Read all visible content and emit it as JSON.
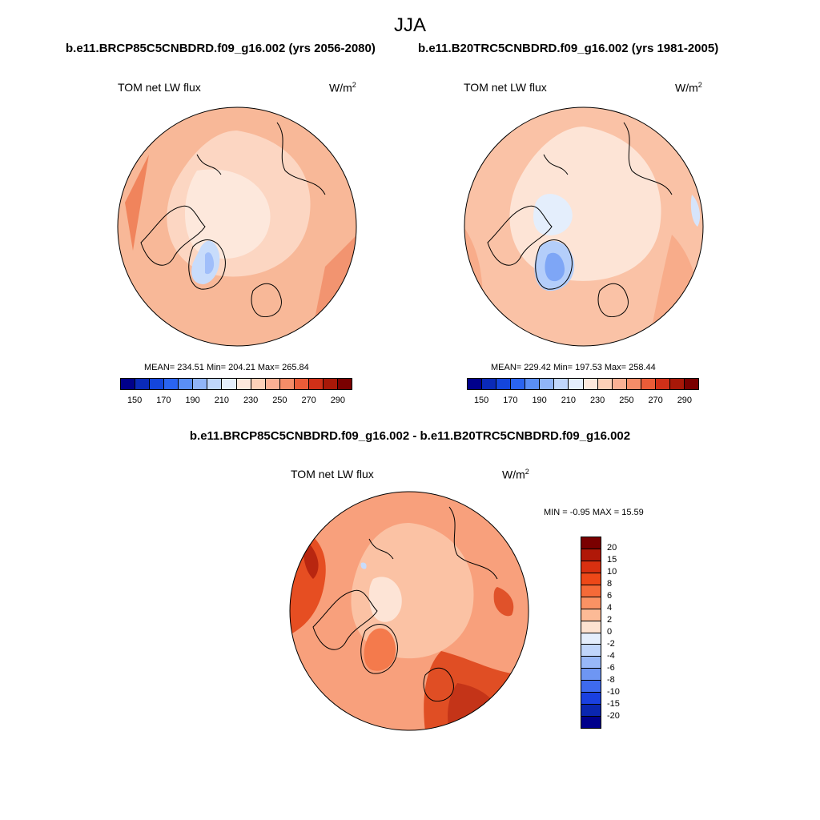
{
  "chart_data": {
    "type": "heatmap",
    "title": "JJA",
    "panels": [
      {
        "id": "scenario",
        "run_title": "b.e11.BRCP85C5CNBDRD.f09_g16.002 (yrs 2056-2080)",
        "variable": "TOM net LW flux",
        "units_base": "W/m",
        "units_exp": "2",
        "stats": "MEAN= 234.51  Min= 204.21  Max= 265.84",
        "mean": 234.51,
        "min": 204.21,
        "max": 265.84,
        "projection": "north-polar-stereographic"
      },
      {
        "id": "control",
        "run_title": "b.e11.B20TRC5CNBDRD.f09_g16.002 (yrs 1981-2005)",
        "variable": "TOM net LW flux",
        "units_base": "W/m",
        "units_exp": "2",
        "stats": "MEAN= 229.42  Min= 197.53  Max= 258.44",
        "mean": 229.42,
        "min": 197.53,
        "max": 258.44,
        "projection": "north-polar-stereographic"
      },
      {
        "id": "difference",
        "run_title": "b.e11.BRCP85C5CNBDRD.f09_g16.002 - b.e11.B20TRC5CNBDRD.f09_g16.002",
        "variable": "TOM net LW flux",
        "units_base": "W/m",
        "units_exp": "2",
        "stats": "MIN =  -0.95 MAX =  15.59",
        "min": -0.95,
        "max": 15.59,
        "projection": "north-polar-stereographic"
      }
    ],
    "abs_colorbar": {
      "levels": [
        150,
        160,
        170,
        180,
        190,
        200,
        210,
        220,
        230,
        240,
        250,
        260,
        270,
        280,
        290
      ],
      "tick_labels": [
        "150",
        "170",
        "190",
        "210",
        "230",
        "250",
        "270",
        "290"
      ],
      "colors": [
        "#00008b",
        "#0a2ab8",
        "#1446dc",
        "#2a64f0",
        "#5a8ef5",
        "#90b4f8",
        "#c0d6fb",
        "#e4eefc",
        "#fde8dc",
        "#fcd0b8",
        "#fab094",
        "#f58c68",
        "#ea5c38",
        "#d03018",
        "#a81808",
        "#7a0000"
      ]
    },
    "diff_colorbar": {
      "tick_labels": [
        "20",
        "15",
        "10",
        "8",
        "6",
        "4",
        "2",
        "0",
        "-2",
        "-4",
        "-6",
        "-8",
        "-10",
        "-15",
        "-20"
      ],
      "colors": [
        "#7a0000",
        "#b01808",
        "#d83010",
        "#ee4818",
        "#f56a38",
        "#fa9264",
        "#fcba96",
        "#fde2d0",
        "#e4eefc",
        "#c0d6fb",
        "#98b8f8",
        "#6e96f3",
        "#3e6aee",
        "#1a40e0",
        "#0a26b0",
        "#00008b"
      ]
    }
  }
}
